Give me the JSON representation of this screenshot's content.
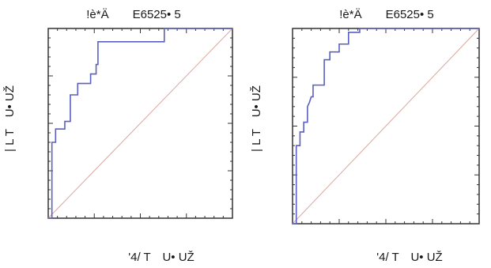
{
  "figure": {
    "charts": [
      {
        "title": "!è*Ä　　E6525• 5",
        "xlabel": "'4/ T　U• UŽ",
        "ylabel": "| L T　U• UŽ"
      },
      {
        "title": "!è*Ä　　E6525• 5",
        "xlabel": "'4/ T　U• UŽ",
        "ylabel": "| L T　U• UŽ"
      }
    ]
  },
  "colors": {
    "roc_curve": "#5a5fc0",
    "reference_line": "#d9a8a0",
    "frame": "#333333",
    "background": "#ffffff"
  },
  "chart_data": [
    {
      "type": "line",
      "title": "!è*Ä　　E6525• 5",
      "xlabel": "'4/ T　U• UŽ",
      "ylabel": "| L T　U• UŽ",
      "xlim": [
        0,
        1
      ],
      "ylim": [
        0,
        1
      ],
      "grid": false,
      "series": [
        {
          "x": [
            0,
            0.02,
            0.02,
            0.04,
            0.04,
            0.09,
            0.09,
            0.12,
            0.12,
            0.16,
            0.16,
            0.23,
            0.23,
            0.26,
            0.26,
            0.27,
            0.27,
            0.63,
            0.63,
            1.0
          ],
          "y": [
            0,
            0,
            0.4,
            0.4,
            0.47,
            0.47,
            0.51,
            0.51,
            0.65,
            0.65,
            0.71,
            0.71,
            0.76,
            0.76,
            0.81,
            0.81,
            0.93,
            0.93,
            1.0,
            1.0
          ]
        },
        {
          "x": [
            0,
            1
          ],
          "y": [
            0,
            1
          ]
        }
      ]
    },
    {
      "type": "line",
      "title": "!è*Ä　　E6525• 5",
      "xlabel": "'4/ T　U• UŽ",
      "ylabel": "| L T　U• UŽ",
      "xlim": [
        0,
        1
      ],
      "ylim": [
        0,
        1
      ],
      "grid": false,
      "series": [
        {
          "x": [
            0,
            0.02,
            0.02,
            0.04,
            0.04,
            0.06,
            0.06,
            0.08,
            0.08,
            0.09,
            0.1,
            0.11,
            0.11,
            0.17,
            0.17,
            0.2,
            0.2,
            0.25,
            0.25,
            0.3,
            0.3,
            0.36,
            0.36,
            1.0
          ],
          "y": [
            0,
            0,
            0.4,
            0.4,
            0.47,
            0.47,
            0.52,
            0.52,
            0.6,
            0.62,
            0.65,
            0.65,
            0.71,
            0.71,
            0.84,
            0.84,
            0.88,
            0.88,
            0.92,
            0.92,
            0.98,
            0.98,
            1.0,
            1.0
          ]
        },
        {
          "x": [
            0,
            1
          ],
          "y": [
            0,
            1
          ]
        }
      ]
    }
  ]
}
